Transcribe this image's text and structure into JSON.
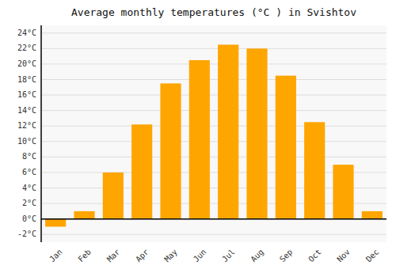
{
  "chart_data": {
    "type": "bar",
    "title": "Average monthly temperatures (°C ) in Svishtov",
    "categories": [
      "Jan",
      "Feb",
      "Mar",
      "Apr",
      "May",
      "Jun",
      "Jul",
      "Aug",
      "Sep",
      "Oct",
      "Nov",
      "Dec"
    ],
    "values": [
      -1.0,
      1.0,
      6.0,
      12.2,
      17.5,
      20.5,
      22.5,
      22.0,
      18.5,
      12.5,
      7.0,
      1.0
    ],
    "color": "#FFA500",
    "ylim": [
      -3,
      25
    ],
    "yticks": [
      {
        "value": -2,
        "label": "-2°C"
      },
      {
        "value": 0,
        "label": "0°C"
      },
      {
        "value": 2,
        "label": "2°C"
      },
      {
        "value": 4,
        "label": "4°C"
      },
      {
        "value": 6,
        "label": "6°C"
      },
      {
        "value": 8,
        "label": "8°C"
      },
      {
        "value": 10,
        "label": "10°C"
      },
      {
        "value": 12,
        "label": "12°C"
      },
      {
        "value": 14,
        "label": "14°C"
      },
      {
        "value": 16,
        "label": "16°C"
      },
      {
        "value": 18,
        "label": "18°C"
      },
      {
        "value": 20,
        "label": "20°C"
      },
      {
        "value": 22,
        "label": "22°C"
      },
      {
        "value": 24,
        "label": "24°C"
      }
    ],
    "grid": true
  }
}
